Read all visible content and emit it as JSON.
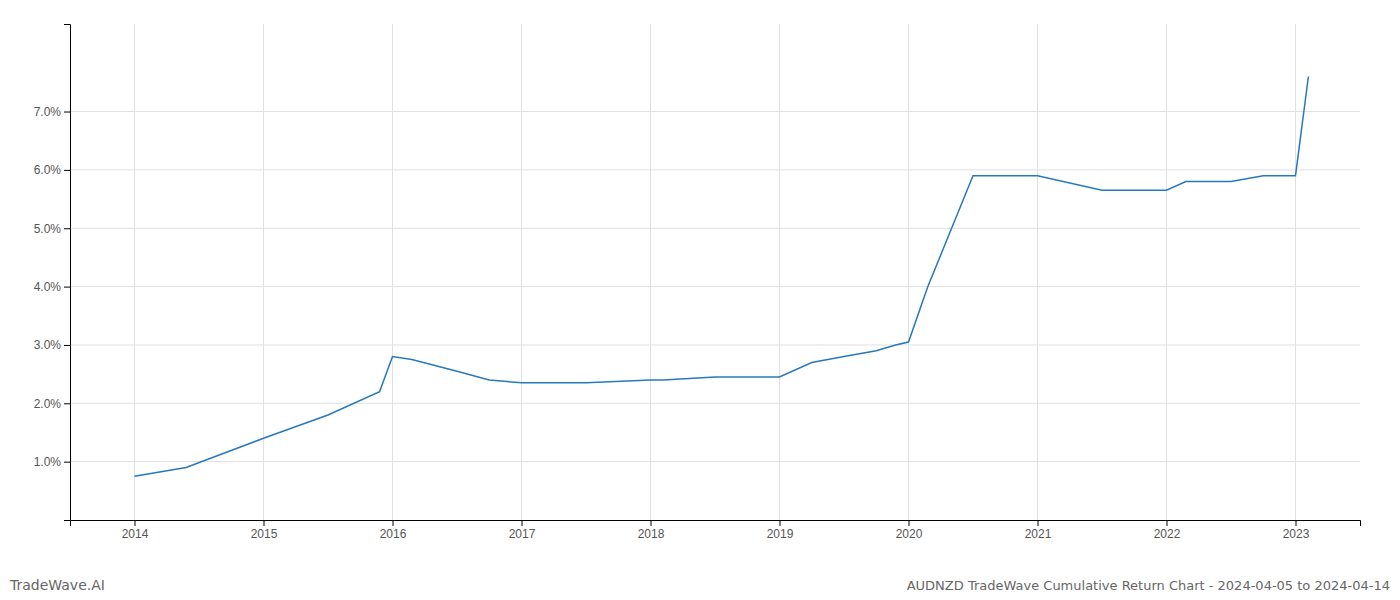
{
  "chart_data": {
    "type": "line",
    "title": "AUDNZD TradeWave Cumulative Return Chart - 2024-04-05 to 2024-04-14",
    "annotations": [
      "TradeWave.AI"
    ],
    "x": [
      2014.0,
      2014.4,
      2015.0,
      2015.5,
      2015.9,
      2016.0,
      2016.15,
      2016.5,
      2016.75,
      2017.0,
      2017.5,
      2018.0,
      2018.1,
      2018.5,
      2019.0,
      2019.25,
      2019.5,
      2019.75,
      2019.9,
      2020.0,
      2020.15,
      2020.5,
      2021.0,
      2021.5,
      2022.0,
      2022.15,
      2022.5,
      2022.75,
      2023.0,
      2023.1
    ],
    "values": [
      0.0075,
      0.009,
      0.014,
      0.018,
      0.022,
      0.028,
      0.0275,
      0.0255,
      0.024,
      0.0235,
      0.0235,
      0.024,
      0.024,
      0.0245,
      0.0245,
      0.027,
      0.028,
      0.029,
      0.03,
      0.0305,
      0.04,
      0.059,
      0.059,
      0.0565,
      0.0565,
      0.058,
      0.058,
      0.059,
      0.059,
      0.076
    ],
    "color": "#2878bd",
    "xlim": [
      2013.5,
      2023.5
    ],
    "ylim": [
      0.0,
      0.085
    ],
    "xticks": [
      2014,
      2015,
      2016,
      2017,
      2018,
      2019,
      2020,
      2021,
      2022,
      2023
    ],
    "yticks": [
      {
        "value": 0.01,
        "label": "1.0%"
      },
      {
        "value": 0.02,
        "label": "2.0%"
      },
      {
        "value": 0.03,
        "label": "3.0%"
      },
      {
        "value": 0.04,
        "label": "4.0%"
      },
      {
        "value": 0.05,
        "label": "5.0%"
      },
      {
        "value": 0.06,
        "label": "6.0%"
      },
      {
        "value": 0.07,
        "label": "7.0%"
      }
    ],
    "grid": true
  }
}
